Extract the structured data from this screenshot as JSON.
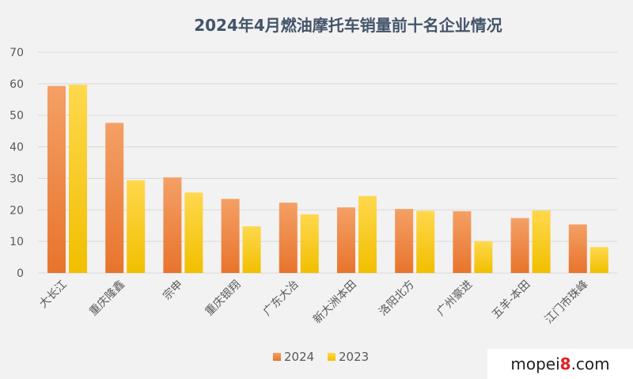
{
  "chart_data": {
    "type": "bar",
    "title": "2024年4月燃油摩托车销量前十名企业情况",
    "categories": [
      "大长江",
      "重庆隆鑫",
      "宗申",
      "重庆银翔",
      "广东大冶",
      "新大洲本田",
      "洛阳北方",
      "广州豪进",
      "五羊-本田",
      "江门市珠峰"
    ],
    "series": [
      {
        "name": "2024",
        "values": [
          59.3,
          47.6,
          30.3,
          23.5,
          22.3,
          20.8,
          20.3,
          19.6,
          17.4,
          15.4
        ]
      },
      {
        "name": "2023",
        "values": [
          59.7,
          29.4,
          25.5,
          14.8,
          18.6,
          24.4,
          19.7,
          10.1,
          19.8,
          8.2
        ]
      }
    ],
    "ylim": [
      0,
      70
    ],
    "yticks": [
      0,
      10,
      20,
      30,
      40,
      50,
      60,
      70
    ],
    "grid": true,
    "legend_position": "bottom",
    "colors": {
      "2024_top": "#f4a066",
      "2024_bottom": "#e8742c",
      "2023_top": "#ffd84d",
      "2023_bottom": "#f1bf00",
      "grid": "#d9d9d9",
      "background": "#f2f2f2"
    }
  },
  "watermark": {
    "text_main": "mopei",
    "text_digit": "8",
    "text_tail": ".com"
  }
}
